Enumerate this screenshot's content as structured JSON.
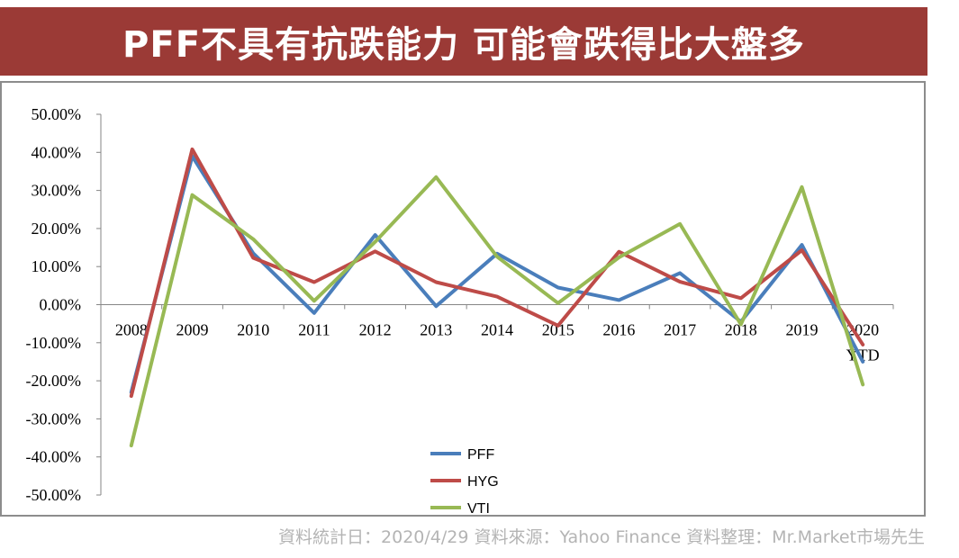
{
  "title": "PFF不具有抗跌能力 可能會跌得比大盤多",
  "footer": "資料統計日：2020/4/29 資料來源：Yahoo Finance  資料整理：Mr.Market市場先生",
  "chart_data": {
    "type": "line",
    "categories": [
      "2008",
      "2009",
      "2010",
      "2011",
      "2012",
      "2013",
      "2014",
      "2015",
      "2016",
      "2017",
      "2018",
      "2019",
      "2020\nYTD"
    ],
    "y_tick_labels": [
      "50.00%",
      "40.00%",
      "30.00%",
      "20.00%",
      "10.00%",
      "0.00%",
      "-10.00%",
      "-20.00%",
      "-30.00%",
      "-40.00%",
      "-50.00%"
    ],
    "ylim": [
      -0.5,
      0.5
    ],
    "grid": false,
    "legend_position": "bottom-center",
    "series": [
      {
        "name": "PFF",
        "color": "#4a7ebb",
        "values": [
          -0.23,
          0.39,
          0.135,
          -0.022,
          0.183,
          -0.004,
          0.134,
          0.045,
          0.012,
          0.083,
          -0.045,
          0.157,
          -0.15
        ]
      },
      {
        "name": "HYG",
        "color": "#be4b48",
        "values": [
          -0.24,
          0.408,
          0.123,
          0.059,
          0.14,
          0.059,
          0.021,
          -0.055,
          0.139,
          0.06,
          0.017,
          0.143,
          -0.105
        ]
      },
      {
        "name": "VTI",
        "color": "#98b954",
        "values": [
          -0.37,
          0.288,
          0.172,
          0.01,
          0.165,
          0.335,
          0.126,
          0.004,
          0.124,
          0.212,
          -0.052,
          0.309,
          -0.21
        ]
      }
    ]
  }
}
